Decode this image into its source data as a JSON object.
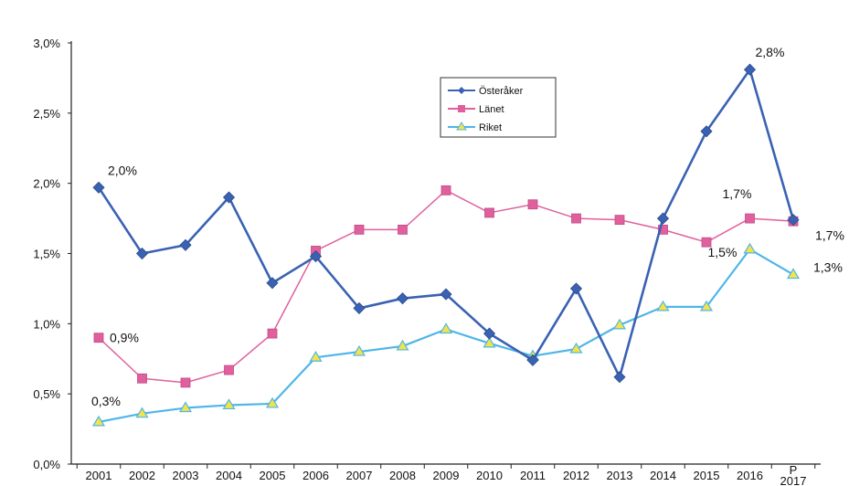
{
  "chart_data": {
    "type": "line",
    "categories": [
      "2001",
      "2002",
      "2003",
      "2004",
      "2005",
      "2006",
      "2007",
      "2008",
      "2009",
      "2010",
      "2011",
      "2012",
      "2013",
      "2014",
      "2015",
      "2016",
      "P 2017"
    ],
    "ylim": [
      0,
      3.0
    ],
    "yticks": [
      "0,0%",
      "0,5%",
      "1,0%",
      "1,5%",
      "2,0%",
      "2,5%",
      "3,0%"
    ],
    "ytick_values": [
      0,
      0.5,
      1.0,
      1.5,
      2.0,
      2.5,
      3.0
    ],
    "grid": false,
    "legend_position": "top-center",
    "series": [
      {
        "name": "Österåker",
        "color": "#3a62b3",
        "marker": "diamond",
        "values": [
          1.97,
          1.5,
          1.56,
          1.9,
          1.29,
          1.48,
          1.11,
          1.18,
          1.21,
          0.93,
          0.74,
          1.25,
          0.62,
          1.75,
          2.37,
          2.81,
          1.74
        ]
      },
      {
        "name": "Länet",
        "color": "#e0609e",
        "marker": "square",
        "values": [
          0.9,
          0.61,
          0.58,
          0.67,
          0.93,
          1.52,
          1.67,
          1.67,
          1.95,
          1.79,
          1.85,
          1.75,
          1.74,
          1.67,
          1.58,
          1.75,
          1.73
        ]
      },
      {
        "name": "Riket",
        "color": "#4fb6e8",
        "marker": "triangle",
        "values": [
          0.3,
          0.36,
          0.4,
          0.42,
          0.43,
          0.76,
          0.8,
          0.84,
          0.96,
          0.86,
          0.77,
          0.82,
          0.99,
          1.12,
          1.12,
          1.53,
          1.35
        ]
      }
    ],
    "annotations": [
      {
        "text": "2,0%",
        "series": 0,
        "index": 0
      },
      {
        "text": "0,9%",
        "series": 1,
        "index": 0
      },
      {
        "text": "0,3%",
        "series": 2,
        "index": 0
      },
      {
        "text": "2,8%",
        "series": 0,
        "index": 15
      },
      {
        "text": "1,7%",
        "series": 1,
        "index": 15
      },
      {
        "text": "1,5%",
        "series": 2,
        "index": 15
      },
      {
        "text": "1,7%",
        "series": 0,
        "index": 16
      },
      {
        "text": "1,3%",
        "series": 2,
        "index": 16
      }
    ]
  }
}
